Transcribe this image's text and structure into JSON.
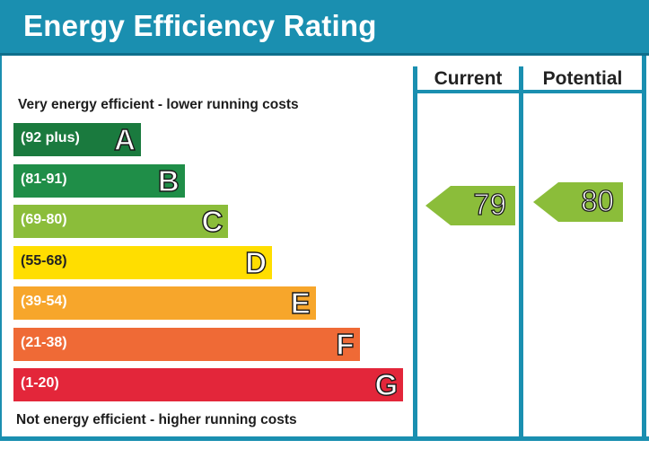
{
  "header": {
    "title": "Energy Efficiency Rating"
  },
  "columns": {
    "current": "Current",
    "potential": "Potential"
  },
  "captions": {
    "top": "Very energy efficient - lower running costs",
    "bottom": "Not energy efficient - higher running costs"
  },
  "chart_data": {
    "type": "bar",
    "title": "Energy Efficiency Rating",
    "categories": [
      "A",
      "B",
      "C",
      "D",
      "E",
      "F",
      "G"
    ],
    "bands": [
      {
        "letter": "A",
        "range": "(92 plus)",
        "color": "#1a7a3e"
      },
      {
        "letter": "B",
        "range": "(81-91)",
        "color": "#1f8e48"
      },
      {
        "letter": "C",
        "range": "(69-80)",
        "color": "#8bbd3a"
      },
      {
        "letter": "D",
        "range": "(55-68)",
        "color": "#ffde00"
      },
      {
        "letter": "E",
        "range": "(39-54)",
        "color": "#f7a62b"
      },
      {
        "letter": "F",
        "range": "(21-38)",
        "color": "#ef6a36"
      },
      {
        "letter": "G",
        "range": "(1-20)",
        "color": "#e3263a"
      }
    ],
    "current": {
      "value": 79,
      "band": "C",
      "color": "#8bbd3a"
    },
    "potential": {
      "value": 80,
      "band": "C",
      "color": "#8bbd3a"
    }
  }
}
